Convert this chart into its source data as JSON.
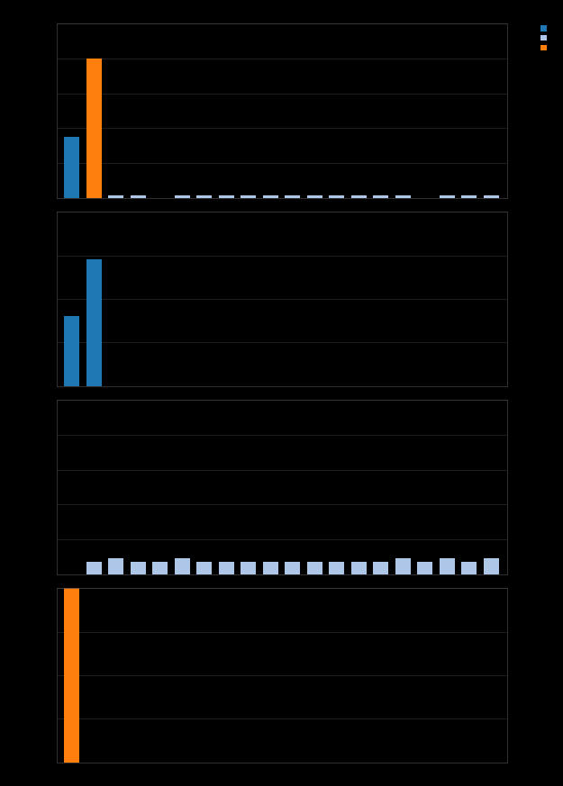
{
  "background_color": "#000000",
  "plot_bg_color": "#000000",
  "subplot1": {
    "n_bars": 20,
    "bar_width": 0.7,
    "series": [
      {
        "color": "#1f77b4",
        "values": [
          3.5,
          0,
          0,
          0,
          0,
          0,
          0,
          0,
          0,
          0,
          0,
          0,
          0,
          0,
          0,
          0,
          0,
          0,
          0,
          0
        ]
      },
      {
        "color": "#aec7e8",
        "values": [
          0,
          0,
          0.12,
          0.12,
          0,
          0.12,
          0.12,
          0.12,
          0.12,
          0.12,
          0.12,
          0.12,
          0.12,
          0.12,
          0.12,
          0.12,
          0,
          0.12,
          0.12,
          0.12
        ]
      },
      {
        "color": "#ff7f0e",
        "values": [
          0,
          8.0,
          0,
          0,
          0,
          0,
          0,
          0,
          0,
          0,
          0,
          0,
          0,
          0,
          0,
          0,
          0,
          0,
          0,
          0
        ]
      }
    ],
    "ylim": [
      0,
      10
    ],
    "grid_lines": [
      2,
      4,
      6,
      8,
      10
    ]
  },
  "subplot2": {
    "n_bars": 20,
    "bar_width": 0.7,
    "series": [
      {
        "color": "#1f77b4",
        "values": [
          3.2,
          5.8,
          0,
          0,
          0,
          0,
          0,
          0,
          0,
          0,
          0,
          0,
          0,
          0,
          0,
          0,
          0,
          0,
          0,
          0
        ]
      }
    ],
    "ylim": [
      0,
      8
    ],
    "grid_lines": [
      2,
      4,
      6,
      8
    ]
  },
  "subplot3": {
    "n_bars": 20,
    "bar_width": 0.7,
    "series": [
      {
        "color": "#aec7e8",
        "values": [
          0,
          0.35,
          0.45,
          0.35,
          0.35,
          0.45,
          0.35,
          0.35,
          0.35,
          0.35,
          0.35,
          0.35,
          0.35,
          0.35,
          0.35,
          0.45,
          0.35,
          0.45,
          0.35,
          0.45
        ]
      }
    ],
    "ylim": [
      0,
      5
    ],
    "grid_lines": [
      1,
      2,
      3,
      4,
      5
    ]
  },
  "subplot4": {
    "n_bars": 20,
    "bar_width": 0.7,
    "series": [
      {
        "color": "#ff7f0e",
        "values": [
          12.0,
          0,
          0,
          0,
          0,
          0,
          0,
          0,
          0,
          0,
          0,
          0,
          0,
          0,
          0,
          0,
          0,
          0,
          0,
          0
        ]
      }
    ],
    "ylim": [
      0,
      12
    ],
    "grid_lines": [
      3,
      6,
      9,
      12
    ]
  },
  "legend_colors": [
    "#1f77b4",
    "#aec7e8",
    "#ff7f0e"
  ],
  "grid_color": "#2a2a2a",
  "spine_color": "#444444"
}
